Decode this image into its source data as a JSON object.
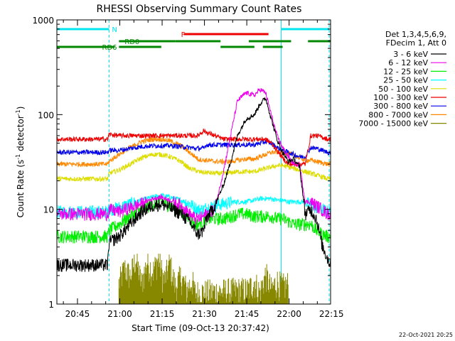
{
  "chart_data": {
    "type": "line",
    "title": "RHESSI Observing Summary Count Rates",
    "xlabel": "Start Time (09-Oct-13 20:37:42)",
    "ylabel_main": "Count Rate (s",
    "ylabel_sup1": "-1",
    "ylabel_mid": " detector",
    "ylabel_sup2": "-1",
    "ylabel_end": ")",
    "ylog": true,
    "ylim": [
      1,
      1000
    ],
    "xlim_minutes": [
      0,
      97
    ],
    "x_tick_labels": [
      "20:45",
      "21:00",
      "21:15",
      "21:30",
      "21:45",
      "22:00",
      "22:15"
    ],
    "x_tick_minutes": [
      7.3,
      22.3,
      37.3,
      52.3,
      67.3,
      82.3,
      97.3
    ],
    "y_tick_labels": [
      "1",
      "10",
      "100",
      "1000"
    ],
    "y_tick_values": [
      1,
      10,
      100,
      1000
    ],
    "legend_title_1": "Det 1,3,4,5,6,9,",
    "legend_title_2": "FDecim 1, Att 0",
    "legend_position": "right",
    "stamp": "22-Oct-2021 20:25",
    "annotations": {
      "night_label": "N",
      "flare_label": "F",
      "rd0_label": "RD0",
      "rd6_label": "RD6"
    },
    "night_intervals_minutes": [
      [
        0,
        18.5
      ],
      [
        79.5,
        96.5
      ]
    ],
    "flare_interval_minutes": [
      45,
      75
    ],
    "rd0_intervals_minutes": [
      [
        22,
        42
      ],
      [
        42,
        58
      ],
      [
        68,
        83
      ],
      [
        89,
        97
      ]
    ],
    "rd6_intervals_minutes": [
      [
        0,
        20.5
      ],
      [
        22,
        37
      ],
      [
        58,
        70
      ],
      [
        73,
        80
      ]
    ],
    "colors": {
      "night": "#00e5ee",
      "flare": "#ee0000",
      "decim": "#008800",
      "axes": "#000000"
    },
    "series": [
      {
        "name": "3 - 6 keV",
        "color": "#000000",
        "points": [
          [
            0,
            2.6
          ],
          [
            18,
            2.6
          ],
          [
            18.5,
            4.5
          ],
          [
            22,
            5.2
          ],
          [
            26,
            7
          ],
          [
            30,
            9.5
          ],
          [
            34,
            11
          ],
          [
            37,
            11.5
          ],
          [
            40,
            10.5
          ],
          [
            44,
            9
          ],
          [
            47,
            7.5
          ],
          [
            49,
            6
          ],
          [
            50,
            5.5
          ],
          [
            52,
            6
          ],
          [
            53,
            8
          ],
          [
            56,
            11
          ],
          [
            59,
            18
          ],
          [
            62,
            35
          ],
          [
            64,
            60
          ],
          [
            67,
            90
          ],
          [
            70,
            100
          ],
          [
            72,
            130
          ],
          [
            74,
            150
          ],
          [
            76,
            90
          ],
          [
            78,
            55
          ],
          [
            80,
            40
          ],
          [
            82,
            32
          ],
          [
            84,
            34
          ],
          [
            86,
            28
          ],
          [
            88,
            9
          ],
          [
            90,
            10
          ],
          [
            92,
            8
          ],
          [
            94,
            4.2
          ],
          [
            96,
            3
          ],
          [
            97,
            2.6
          ]
        ]
      },
      {
        "name": "6 - 12 keV",
        "color": "#ee00ee",
        "points": [
          [
            0,
            9
          ],
          [
            18,
            9
          ],
          [
            18.5,
            10
          ],
          [
            22,
            9.5
          ],
          [
            26,
            10.5
          ],
          [
            30,
            11.5
          ],
          [
            34,
            13
          ],
          [
            37,
            13.5
          ],
          [
            40,
            12.5
          ],
          [
            44,
            11
          ],
          [
            47,
            9
          ],
          [
            49,
            8
          ],
          [
            50,
            8
          ],
          [
            52,
            8.5
          ],
          [
            53,
            9
          ],
          [
            56,
            10
          ],
          [
            59,
            25
          ],
          [
            62,
            70
          ],
          [
            64,
            140
          ],
          [
            67,
            170
          ],
          [
            70,
            160
          ],
          [
            72,
            185
          ],
          [
            74,
            170
          ],
          [
            76,
            100
          ],
          [
            78,
            60
          ],
          [
            80,
            45
          ],
          [
            82,
            36
          ],
          [
            84,
            30
          ],
          [
            86,
            30
          ],
          [
            88,
            12
          ],
          [
            90,
            12
          ],
          [
            92,
            11
          ],
          [
            94,
            10
          ],
          [
            96,
            9
          ],
          [
            97,
            9
          ]
        ]
      },
      {
        "name": "12 - 25 keV",
        "color": "#00ee00",
        "points": [
          [
            0,
            5.2
          ],
          [
            18,
            5.2
          ],
          [
            18.5,
            6
          ],
          [
            22,
            7
          ],
          [
            26,
            8.5
          ],
          [
            30,
            10
          ],
          [
            34,
            11.5
          ],
          [
            37,
            12
          ],
          [
            40,
            11
          ],
          [
            44,
            9.5
          ],
          [
            47,
            8
          ],
          [
            49,
            7
          ],
          [
            50,
            7
          ],
          [
            52,
            7.5
          ],
          [
            53,
            8
          ],
          [
            56,
            8
          ],
          [
            59,
            8
          ],
          [
            62,
            8.5
          ],
          [
            64,
            9
          ],
          [
            67,
            9
          ],
          [
            70,
            8.5
          ],
          [
            72,
            8.5
          ],
          [
            74,
            8.5
          ],
          [
            76,
            8.5
          ],
          [
            78,
            8
          ],
          [
            80,
            8
          ],
          [
            82,
            7.5
          ],
          [
            84,
            7
          ],
          [
            86,
            7
          ],
          [
            88,
            7
          ],
          [
            90,
            7
          ],
          [
            92,
            6
          ],
          [
            94,
            5.5
          ],
          [
            96,
            5.2
          ],
          [
            97,
            5.2
          ]
        ]
      },
      {
        "name": "25 - 50 keV",
        "color": "#00ffff",
        "points": [
          [
            0,
            9.5
          ],
          [
            18,
            9.5
          ],
          [
            18.5,
            10
          ],
          [
            22,
            10.5
          ],
          [
            26,
            11.5
          ],
          [
            30,
            12.5
          ],
          [
            34,
            13.5
          ],
          [
            37,
            14
          ],
          [
            40,
            13.5
          ],
          [
            44,
            12.5
          ],
          [
            47,
            11.5
          ],
          [
            49,
            10.5
          ],
          [
            50,
            10
          ],
          [
            52,
            10
          ],
          [
            53,
            10.5
          ],
          [
            56,
            11
          ],
          [
            59,
            11.5
          ],
          [
            62,
            12
          ],
          [
            64,
            12
          ],
          [
            67,
            12
          ],
          [
            70,
            12.5
          ],
          [
            72,
            13
          ],
          [
            74,
            13
          ],
          [
            76,
            13
          ],
          [
            78,
            12.5
          ],
          [
            80,
            12.5
          ],
          [
            82,
            12
          ],
          [
            84,
            12
          ],
          [
            86,
            12
          ],
          [
            88,
            12
          ],
          [
            90,
            11
          ],
          [
            92,
            10.5
          ],
          [
            94,
            10
          ],
          [
            96,
            9.5
          ],
          [
            97,
            9.5
          ]
        ]
      },
      {
        "name": "50 - 100 keV",
        "color": "#dddd00",
        "points": [
          [
            0,
            21
          ],
          [
            18,
            21
          ],
          [
            18.5,
            24
          ],
          [
            22,
            26
          ],
          [
            26,
            30
          ],
          [
            30,
            35
          ],
          [
            34,
            38
          ],
          [
            37,
            38
          ],
          [
            40,
            36
          ],
          [
            44,
            32
          ],
          [
            47,
            27
          ],
          [
            49,
            26
          ],
          [
            50,
            25
          ],
          [
            52,
            24.5
          ],
          [
            53,
            24.5
          ],
          [
            56,
            24
          ],
          [
            59,
            24
          ],
          [
            62,
            24.5
          ],
          [
            64,
            25
          ],
          [
            67,
            25
          ],
          [
            70,
            25
          ],
          [
            72,
            26
          ],
          [
            74,
            27
          ],
          [
            76,
            28
          ],
          [
            78,
            29
          ],
          [
            80,
            29
          ],
          [
            82,
            28
          ],
          [
            84,
            27
          ],
          [
            86,
            26
          ],
          [
            88,
            25
          ],
          [
            90,
            24
          ],
          [
            92,
            23
          ],
          [
            94,
            22
          ],
          [
            96,
            21
          ],
          [
            97,
            21
          ]
        ]
      },
      {
        "name": "100 - 300 keV",
        "color": "#ee0000",
        "points": [
          [
            0,
            55
          ],
          [
            18,
            55
          ],
          [
            18.5,
            62
          ],
          [
            22,
            60
          ],
          [
            26,
            60
          ],
          [
            30,
            60
          ],
          [
            34,
            60
          ],
          [
            37,
            60
          ],
          [
            40,
            60
          ],
          [
            44,
            60
          ],
          [
            47,
            60
          ],
          [
            49,
            60
          ],
          [
            50,
            60
          ],
          [
            52,
            68
          ],
          [
            53,
            65
          ],
          [
            56,
            60
          ],
          [
            59,
            55
          ],
          [
            62,
            55
          ],
          [
            64,
            55
          ],
          [
            67,
            55
          ],
          [
            70,
            55
          ],
          [
            72,
            55
          ],
          [
            74,
            55
          ],
          [
            76,
            50
          ],
          [
            78,
            42
          ],
          [
            80,
            35
          ],
          [
            82,
            30
          ],
          [
            84,
            30
          ],
          [
            86,
            30
          ],
          [
            88,
            30
          ],
          [
            90,
            60
          ],
          [
            92,
            60
          ],
          [
            94,
            58
          ],
          [
            96,
            55
          ],
          [
            97,
            55
          ]
        ]
      },
      {
        "name": "300 - 800 keV",
        "color": "#0000ee",
        "points": [
          [
            0,
            40
          ],
          [
            18,
            40
          ],
          [
            18.5,
            42
          ],
          [
            22,
            42
          ],
          [
            26,
            44
          ],
          [
            30,
            46
          ],
          [
            34,
            47
          ],
          [
            37,
            47
          ],
          [
            40,
            47
          ],
          [
            44,
            46
          ],
          [
            47,
            45
          ],
          [
            49,
            44
          ],
          [
            50,
            44
          ],
          [
            52,
            44
          ],
          [
            53,
            48
          ],
          [
            56,
            48
          ],
          [
            59,
            48
          ],
          [
            62,
            48
          ],
          [
            64,
            48
          ],
          [
            67,
            48
          ],
          [
            70,
            48
          ],
          [
            72,
            50
          ],
          [
            74,
            52
          ],
          [
            76,
            50
          ],
          [
            78,
            45
          ],
          [
            80,
            42
          ],
          [
            82,
            40
          ],
          [
            84,
            38
          ],
          [
            86,
            36
          ],
          [
            88,
            36
          ],
          [
            90,
            45
          ],
          [
            92,
            44
          ],
          [
            94,
            42
          ],
          [
            96,
            40
          ],
          [
            97,
            40
          ]
        ]
      },
      {
        "name": "800 - 7000 keV",
        "color": "#ff8800",
        "points": [
          [
            0,
            30
          ],
          [
            18,
            30
          ],
          [
            18.5,
            32
          ],
          [
            22,
            38
          ],
          [
            26,
            45
          ],
          [
            30,
            52
          ],
          [
            34,
            55
          ],
          [
            37,
            55
          ],
          [
            40,
            53
          ],
          [
            44,
            47
          ],
          [
            47,
            40
          ],
          [
            49,
            36
          ],
          [
            50,
            34
          ],
          [
            52,
            33
          ],
          [
            53,
            33
          ],
          [
            56,
            32
          ],
          [
            59,
            32
          ],
          [
            62,
            32
          ],
          [
            64,
            33
          ],
          [
            67,
            34
          ],
          [
            70,
            34
          ],
          [
            72,
            36
          ],
          [
            74,
            38
          ],
          [
            76,
            40
          ],
          [
            78,
            40
          ],
          [
            80,
            40
          ],
          [
            82,
            39
          ],
          [
            84,
            37
          ],
          [
            86,
            35
          ],
          [
            88,
            33
          ],
          [
            90,
            33
          ],
          [
            92,
            32
          ],
          [
            94,
            31
          ],
          [
            96,
            30
          ],
          [
            97,
            30
          ]
        ]
      },
      {
        "name": "7000 - 15000 keV",
        "color": "#888800",
        "points": [
          [
            22,
            1.5
          ],
          [
            24,
            2.2
          ],
          [
            26,
            1.8
          ],
          [
            28,
            2.8
          ],
          [
            30,
            1.5
          ],
          [
            32,
            2.6
          ],
          [
            34,
            2.0
          ],
          [
            36,
            2.8
          ],
          [
            38,
            1.6
          ],
          [
            40,
            2.5
          ],
          [
            42,
            1.4
          ],
          [
            44,
            1.8
          ],
          [
            46,
            1.3
          ],
          [
            48,
            1.6
          ],
          [
            49,
            1.2
          ],
          [
            68,
            1.3
          ],
          [
            70,
            1.6
          ],
          [
            72,
            1.2
          ],
          [
            74,
            1.9
          ],
          [
            76,
            1.3
          ],
          [
            78,
            1.6
          ],
          [
            80,
            1.4
          ],
          [
            82,
            1.5
          ]
        ]
      }
    ]
  }
}
